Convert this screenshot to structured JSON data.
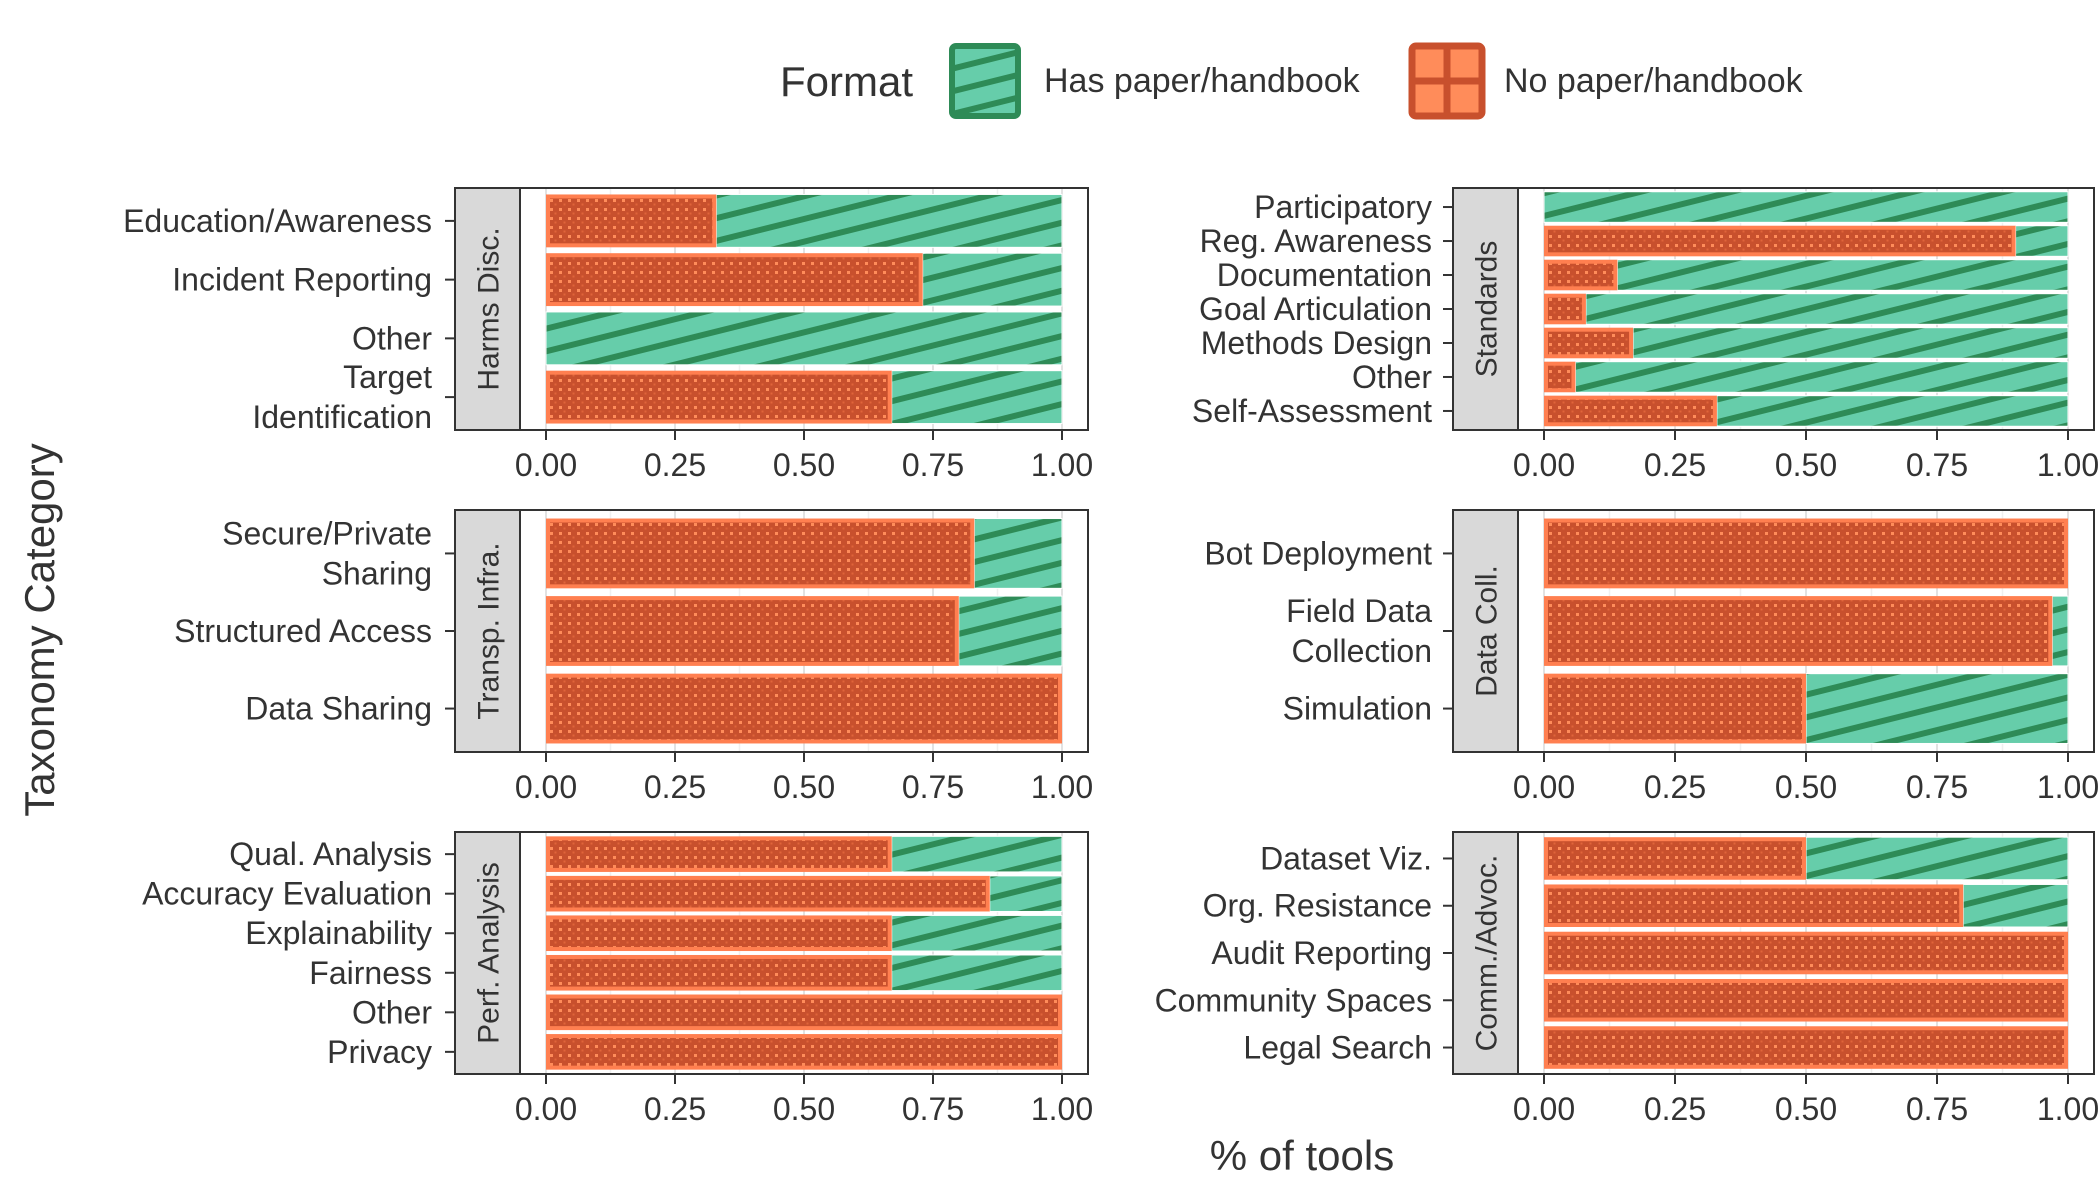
{
  "legend": {
    "title": "Format",
    "items": [
      {
        "key": "has",
        "label": "Has paper/handbook",
        "color": "#66CDAA"
      },
      {
        "key": "no",
        "label": "No paper/handbook",
        "color": "#FF8C5A"
      }
    ]
  },
  "xlabel": "% of tools",
  "ylabel": "Taxonomy Category",
  "colors": {
    "has_fill": "#66CDAA",
    "has_stripe": "#2E8B57",
    "no_fill": "#FF7F50",
    "no_pattern": "#C8502D",
    "strip_bg": "#D9D9D9"
  },
  "chart_data": [
    {
      "type": "bar",
      "strip": "Harms Disc.",
      "xlim": [
        0,
        1
      ],
      "xticks": [
        "0.00",
        "0.25",
        "0.50",
        "0.75",
        "1.00"
      ],
      "categories": [
        [
          "Education/Awareness"
        ],
        [
          "Incident Reporting"
        ],
        [
          "Other"
        ],
        [
          "Target",
          "Identification"
        ]
      ],
      "series": [
        {
          "name": "No paper/handbook",
          "values": [
            0.33,
            0.73,
            0.0,
            0.67
          ]
        },
        {
          "name": "Has paper/handbook",
          "values": [
            0.67,
            0.27,
            1.0,
            0.33
          ]
        }
      ]
    },
    {
      "type": "bar",
      "strip": "Standards",
      "xlim": [
        0,
        1
      ],
      "xticks": [
        "0.00",
        "0.25",
        "0.50",
        "0.75",
        "1.00"
      ],
      "categories": [
        [
          "Participatory"
        ],
        [
          "Reg. Awareness"
        ],
        [
          "Documentation"
        ],
        [
          "Goal Articulation"
        ],
        [
          "Methods Design"
        ],
        [
          "Other"
        ],
        [
          "Self-Assessment"
        ]
      ],
      "series": [
        {
          "name": "No paper/handbook",
          "values": [
            0.0,
            0.9,
            0.14,
            0.08,
            0.17,
            0.06,
            0.33
          ]
        },
        {
          "name": "Has paper/handbook",
          "values": [
            1.0,
            0.1,
            0.86,
            0.92,
            0.83,
            0.94,
            0.67
          ]
        }
      ]
    },
    {
      "type": "bar",
      "strip": "Transp. Infra.",
      "xlim": [
        0,
        1
      ],
      "xticks": [
        "0.00",
        "0.25",
        "0.50",
        "0.75",
        "1.00"
      ],
      "categories": [
        [
          "Secure/Private",
          "Sharing"
        ],
        [
          "Structured Access"
        ],
        [
          "Data Sharing"
        ]
      ],
      "series": [
        {
          "name": "No paper/handbook",
          "values": [
            0.83,
            0.8,
            1.0
          ]
        },
        {
          "name": "Has paper/handbook",
          "values": [
            0.17,
            0.2,
            0.0
          ]
        }
      ]
    },
    {
      "type": "bar",
      "strip": "Data Coll.",
      "xlim": [
        0,
        1
      ],
      "xticks": [
        "0.00",
        "0.25",
        "0.50",
        "0.75",
        "1.00"
      ],
      "categories": [
        [
          "Bot Deployment"
        ],
        [
          "Field Data",
          "Collection"
        ],
        [
          "Simulation"
        ]
      ],
      "series": [
        {
          "name": "No paper/handbook",
          "values": [
            1.0,
            0.97,
            0.5
          ]
        },
        {
          "name": "Has paper/handbook",
          "values": [
            0.0,
            0.03,
            0.5
          ]
        }
      ]
    },
    {
      "type": "bar",
      "strip": "Perf. Analysis",
      "xlim": [
        0,
        1
      ],
      "xticks": [
        "0.00",
        "0.25",
        "0.50",
        "0.75",
        "1.00"
      ],
      "categories": [
        [
          "Qual. Analysis"
        ],
        [
          "Accuracy Evaluation"
        ],
        [
          "Explainability"
        ],
        [
          "Fairness"
        ],
        [
          "Other"
        ],
        [
          "Privacy"
        ]
      ],
      "series": [
        {
          "name": "No paper/handbook",
          "values": [
            0.67,
            0.86,
            0.67,
            0.67,
            1.0,
            1.0
          ]
        },
        {
          "name": "Has paper/handbook",
          "values": [
            0.33,
            0.14,
            0.33,
            0.33,
            0.0,
            0.0
          ]
        }
      ]
    },
    {
      "type": "bar",
      "strip": "Comm./Advoc.",
      "xlim": [
        0,
        1
      ],
      "xticks": [
        "0.00",
        "0.25",
        "0.50",
        "0.75",
        "1.00"
      ],
      "categories": [
        [
          "Dataset Viz."
        ],
        [
          "Org. Resistance"
        ],
        [
          "Audit Reporting"
        ],
        [
          "Community Spaces"
        ],
        [
          "Legal Search"
        ]
      ],
      "series": [
        {
          "name": "No paper/handbook",
          "values": [
            0.5,
            0.8,
            1.0,
            1.0,
            1.0
          ]
        },
        {
          "name": "Has paper/handbook",
          "values": [
            0.5,
            0.2,
            0.0,
            0.0,
            0.0
          ]
        }
      ]
    }
  ]
}
